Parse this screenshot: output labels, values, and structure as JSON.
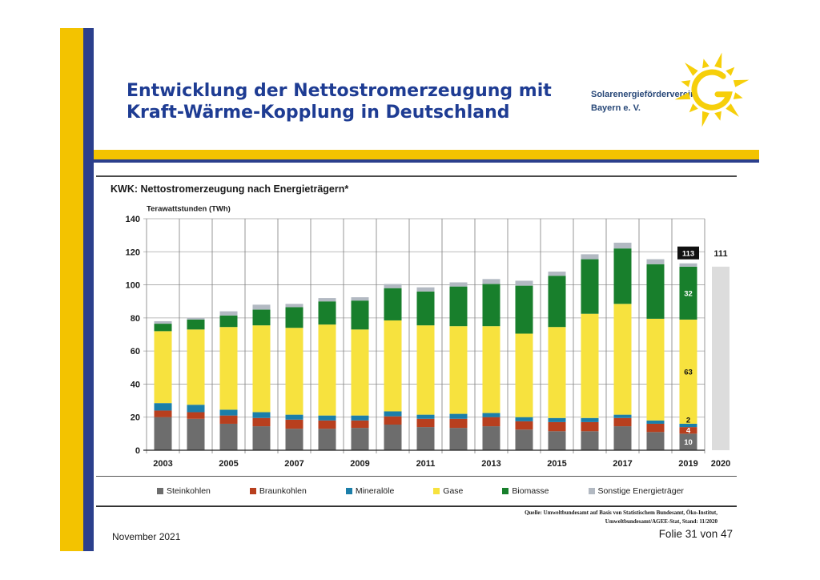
{
  "colors": {
    "accent_yellow": "#f3c300",
    "accent_blue": "#2b3f8c",
    "title_blue": "#1e3c93",
    "logo_text": "#284878",
    "sun_yellow": "#f6cf0a"
  },
  "slide": {
    "title_line1": "Entwicklung der Nettostromerzeugung mit",
    "title_line2": "Kraft-Wärme-Kopplung in Deutschland"
  },
  "logo": {
    "line1": "Solarenergieförderverein",
    "line2": "Bayern e. V.",
    "icon": "sun-icon"
  },
  "chart_data": {
    "type": "bar",
    "stacked": true,
    "title": "KWK: Nettostromerzeugung nach Energieträgern*",
    "ylabel": "Terawattstunden (TWh)",
    "xlabel": "",
    "ylim": [
      0,
      140
    ],
    "yticks": [
      0,
      20,
      40,
      60,
      80,
      100,
      120,
      140
    ],
    "x": [
      2003,
      2004,
      2005,
      2006,
      2007,
      2008,
      2009,
      2010,
      2011,
      2012,
      2013,
      2014,
      2015,
      2016,
      2017,
      2018,
      2019
    ],
    "xtick_labels": [
      "2003",
      "2005",
      "2007",
      "2009",
      "2011",
      "2013",
      "2015",
      "2017",
      "2019"
    ],
    "series": [
      {
        "name": "Steinkohlen",
        "color": "#6d6d6d",
        "values": [
          20,
          19,
          16,
          14.5,
          13,
          13,
          13.5,
          15.5,
          14,
          13.5,
          14.5,
          12.5,
          11.5,
          11.5,
          14.5,
          11,
          10
        ]
      },
      {
        "name": "Braunkohlen",
        "color": "#b83f1e",
        "values": [
          4,
          4,
          5,
          5,
          5.5,
          5,
          4.5,
          5,
          5,
          5.5,
          5.5,
          5,
          5.5,
          5.5,
          5,
          5,
          4
        ]
      },
      {
        "name": "Mineralöle",
        "color": "#1b7ea9",
        "values": [
          4.5,
          4.5,
          3.5,
          3.5,
          3,
          3,
          3,
          3,
          2.5,
          3,
          2.5,
          2.5,
          2.5,
          2.5,
          2,
          2,
          2
        ]
      },
      {
        "name": "Gase",
        "color": "#f7e23e",
        "values": [
          43.5,
          45.5,
          50,
          52.5,
          52.5,
          55,
          52,
          55,
          54,
          53,
          52.5,
          50.5,
          55,
          63,
          67,
          61.5,
          63
        ]
      },
      {
        "name": "Biomasse",
        "color": "#187f2c",
        "values": [
          4.5,
          6,
          7,
          9.5,
          12.5,
          14,
          17.5,
          19.5,
          20.5,
          24,
          25.5,
          29,
          31,
          33,
          33.5,
          33,
          32
        ]
      },
      {
        "name": "Sonstige Energieträger",
        "color": "#b2b9c2",
        "values": [
          1.5,
          1,
          2.5,
          3,
          2,
          2,
          2,
          2.5,
          2.5,
          2.5,
          3,
          3,
          2.5,
          3,
          3.5,
          3,
          2
        ]
      }
    ],
    "data_labels": [
      {
        "x": 2019,
        "series": "Steinkohlen",
        "text": "10"
      },
      {
        "x": 2019,
        "series": "Braunkohlen",
        "text": "4"
      },
      {
        "x": 2019,
        "series": "Mineralöle",
        "text": "2"
      },
      {
        "x": 2019,
        "series": "Gase",
        "text": "63"
      },
      {
        "x": 2019,
        "series": "Biomasse",
        "text": "32"
      },
      {
        "x": 2019,
        "series": "total",
        "text": "113"
      }
    ],
    "extra_bar": {
      "x_label": "2020",
      "total": 111,
      "value_label": "111",
      "color": "#dcdcdc"
    },
    "grid": true,
    "legend": "bottom"
  },
  "source": {
    "line1": "Quelle: Umweltbundesamt auf Basis von Statistischem Bundesamt, Öko-Institut,",
    "line2": "Umweltbundesamt/AGEE-Stat, Stand: 11/2020"
  },
  "footer": {
    "date": "November 2021",
    "slide_number": "Folie 31 von 47"
  }
}
